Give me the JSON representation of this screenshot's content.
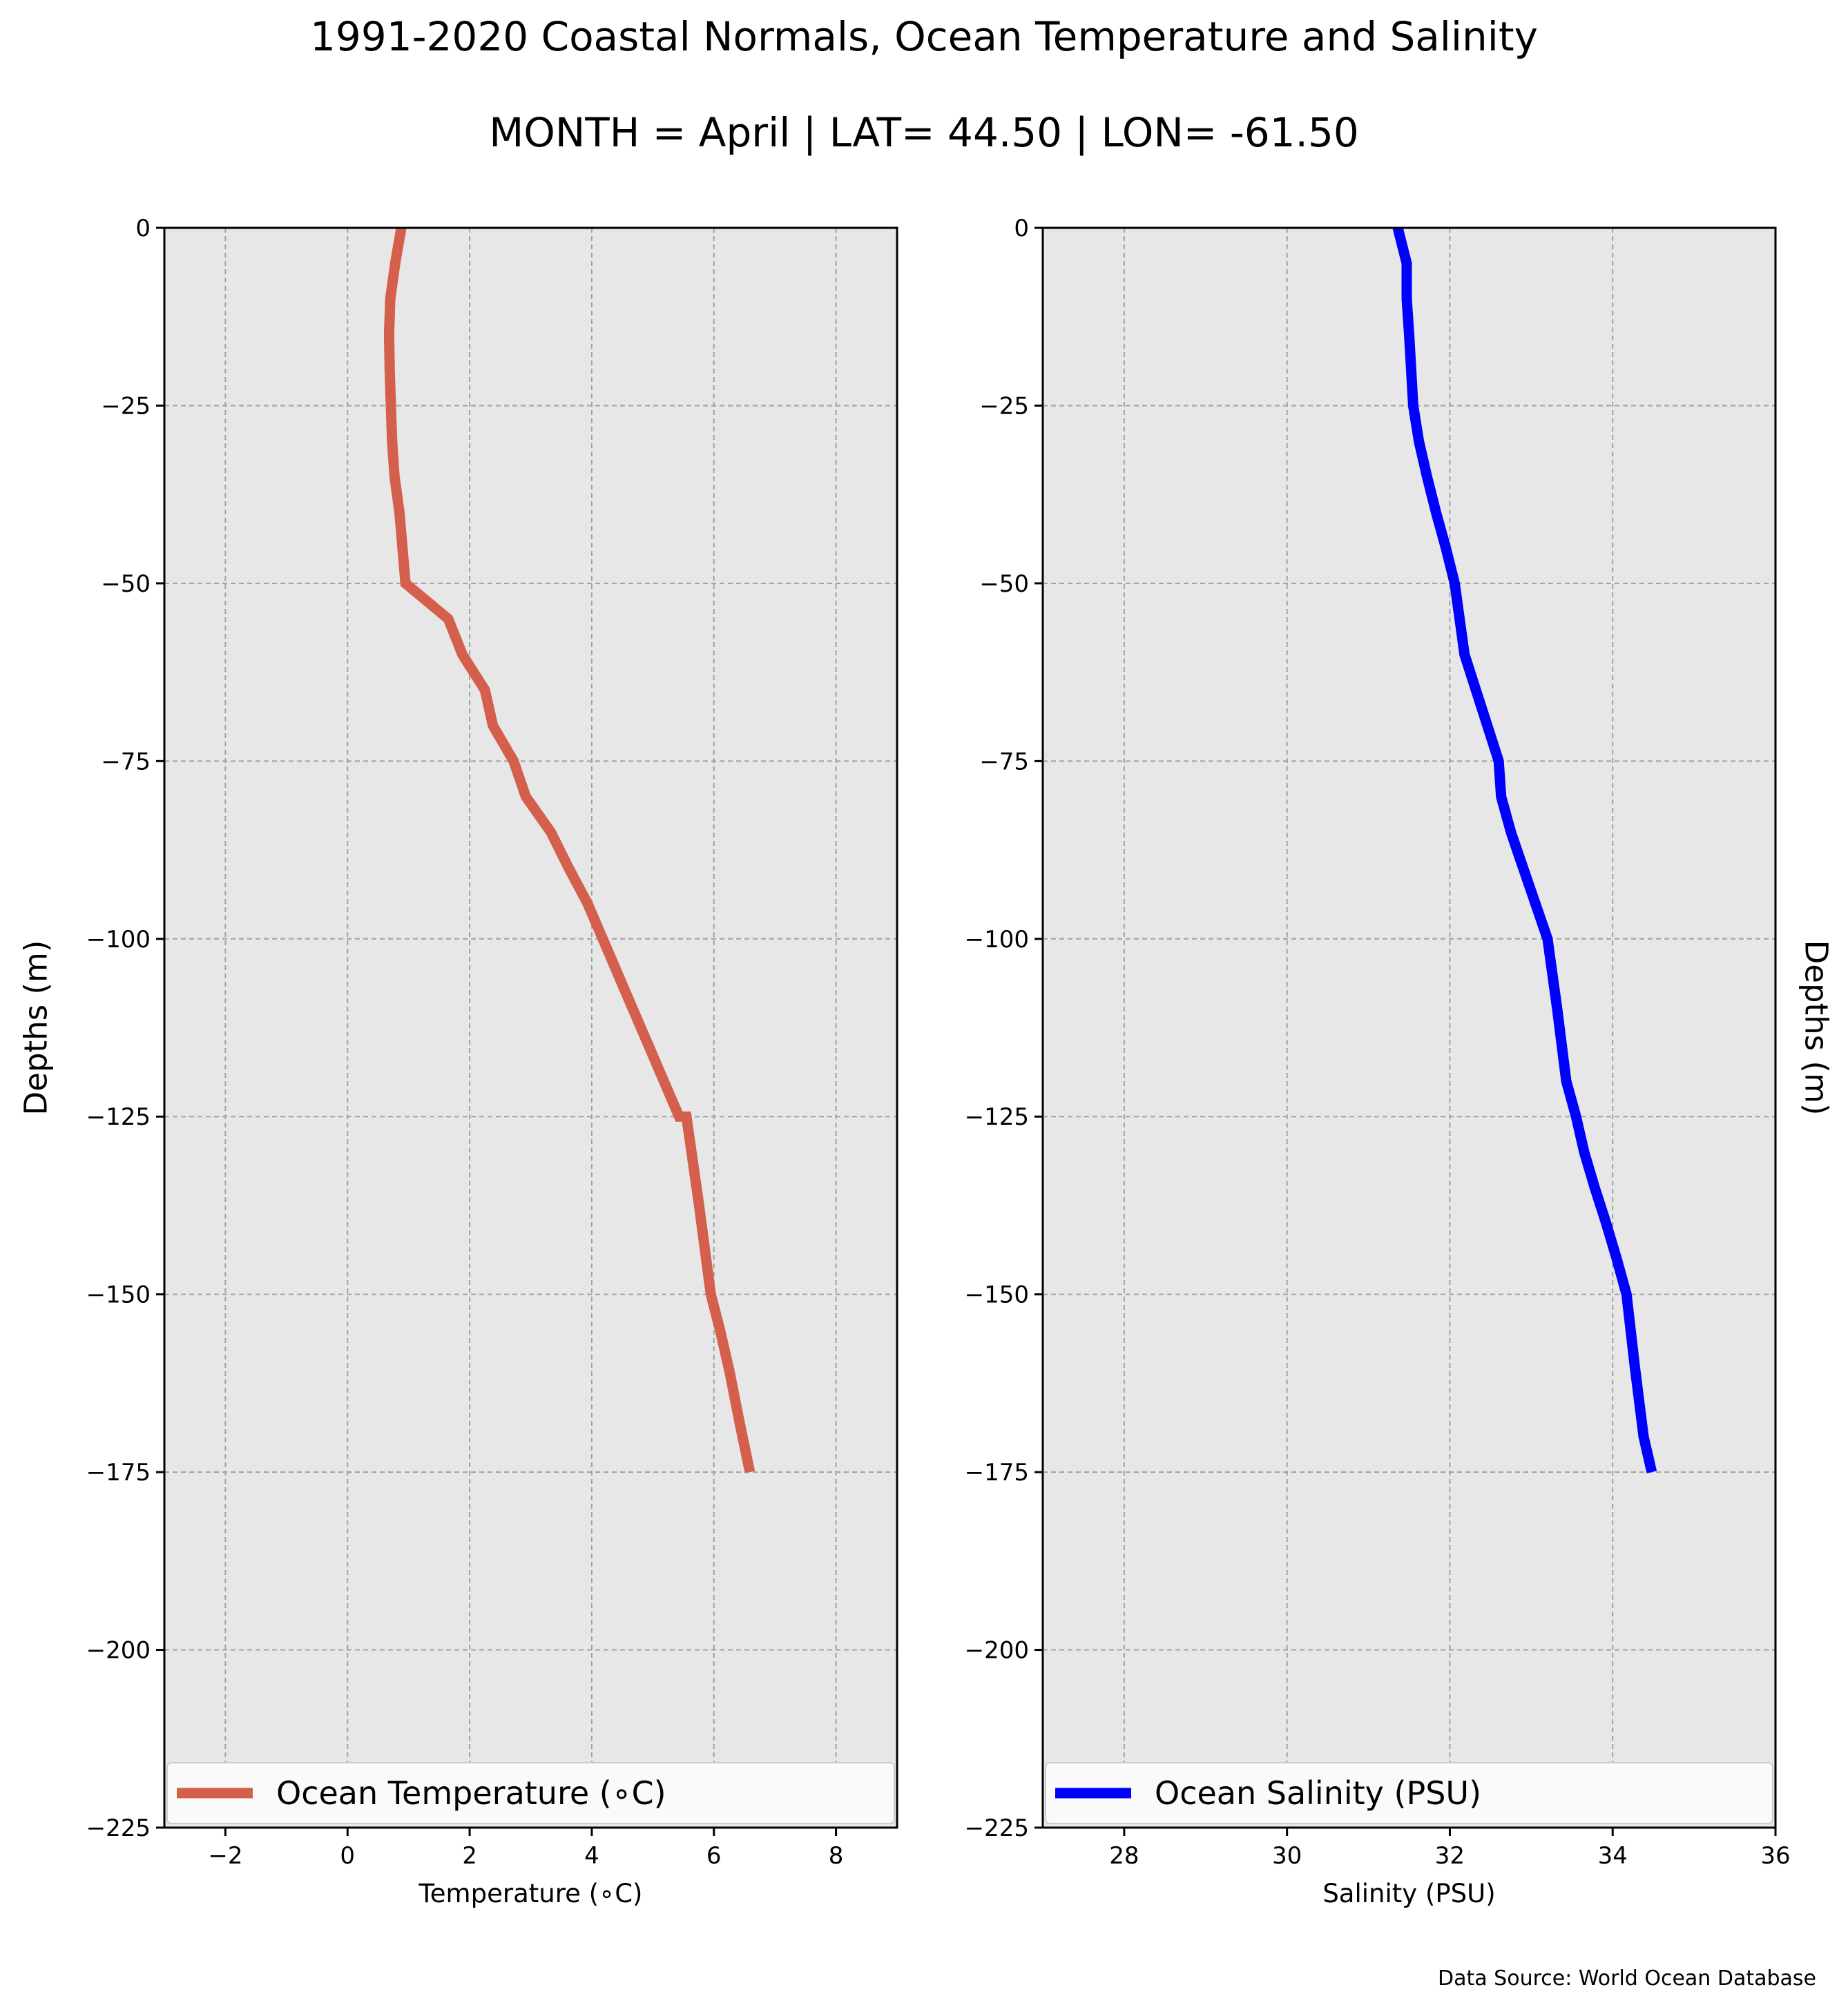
{
  "figure": {
    "title_line1": "1991-2020 Coastal Normals, Ocean Temperature and Salinity",
    "title_line2": "MONTH = April | LAT= 44.50 | LON= -61.50",
    "source": "Data Source: World Ocean Database",
    "background_color": "#ffffff",
    "axes_face_color": "#e7e7e7"
  },
  "chart_data": [
    {
      "type": "line",
      "name": "temperature",
      "xlabel": "Temperature (∘C)",
      "ylabel": "Depths (m)",
      "xlim": [
        -3,
        9
      ],
      "ylim": [
        -225,
        0
      ],
      "xticks": [
        -2,
        0,
        2,
        4,
        6,
        8
      ],
      "xtick_labels": [
        "−2",
        "0",
        "2",
        "4",
        "6",
        "8"
      ],
      "yticks": [
        0,
        -25,
        -50,
        -75,
        -100,
        -125,
        -150,
        -175,
        -200,
        -225
      ],
      "ytick_labels": [
        "0",
        "−25",
        "−50",
        "−75",
        "−100",
        "−125",
        "−150",
        "−175",
        "−200",
        "−225"
      ],
      "grid": true,
      "legend_location": "lower-center",
      "series": [
        {
          "name": "Ocean Temperature (∘C)",
          "color": "#d45f4c",
          "x": [
            0.88,
            0.78,
            0.7,
            0.68,
            0.69,
            0.71,
            0.73,
            0.77,
            0.85,
            0.95,
            1.65,
            1.88,
            2.25,
            2.38,
            2.72,
            2.92,
            3.33,
            3.62,
            3.93,
            4.18,
            4.43,
            4.68,
            4.93,
            5.18,
            5.43,
            5.55,
            5.75,
            5.95,
            6.1,
            6.26,
            6.42,
            6.59
          ],
          "y": [
            0,
            -5,
            -10,
            -15,
            -20,
            -25,
            -30,
            -35,
            -40,
            -50,
            -55,
            -60,
            -65,
            -70,
            -75,
            -80,
            -85,
            -90,
            -95,
            -100,
            -105,
            -110,
            -115,
            -120,
            -125,
            -125,
            -137,
            -150,
            -155,
            -161,
            -168,
            -175
          ]
        }
      ]
    },
    {
      "type": "line",
      "name": "salinity",
      "xlabel": "Salinity (PSU)",
      "ylabel": "Depths (m)",
      "xlim": [
        27,
        36
      ],
      "ylim": [
        -225,
        0
      ],
      "xticks": [
        28,
        30,
        32,
        34,
        36
      ],
      "xtick_labels": [
        "28",
        "30",
        "32",
        "34",
        "36"
      ],
      "yticks": [
        0,
        -25,
        -50,
        -75,
        -100,
        -125,
        -150,
        -175,
        -200,
        -225
      ],
      "ytick_labels": [
        "0",
        "−25",
        "−50",
        "−75",
        "−100",
        "−125",
        "−150",
        "−175",
        "−200",
        "−225"
      ],
      "grid": true,
      "legend_location": "lower-center",
      "series": [
        {
          "name": "Ocean Salinity (PSU)",
          "color": "#0000ff",
          "x": [
            31.36,
            31.47,
            31.47,
            31.5,
            31.55,
            31.62,
            31.72,
            31.83,
            31.95,
            32.06,
            32.18,
            32.32,
            32.46,
            32.6,
            32.63,
            32.75,
            32.9,
            33.05,
            33.2,
            33.32,
            33.43,
            33.55,
            33.65,
            33.78,
            33.92,
            34.05,
            34.17,
            34.27,
            34.38,
            34.48
          ],
          "y": [
            0,
            -5,
            -10,
            -15,
            -25,
            -30,
            -35,
            -40,
            -45,
            -50,
            -60,
            -65,
            -70,
            -75,
            -80,
            -85,
            -90,
            -95,
            -100,
            -110,
            -120,
            -125,
            -130,
            -135,
            -140,
            -145,
            -150,
            -160,
            -170,
            -175
          ]
        }
      ]
    }
  ]
}
